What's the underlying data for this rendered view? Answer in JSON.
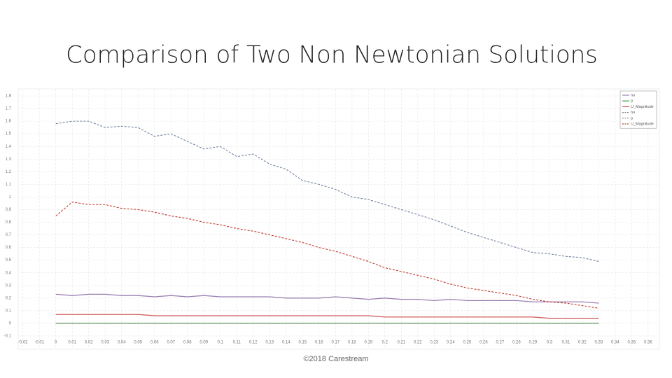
{
  "chart_data": {
    "type": "line",
    "title": "Comparison of Two Non Newtonian Solutions",
    "footer": "©2018 Carestream",
    "x": [
      0,
      0.01,
      0.02,
      0.03,
      0.04,
      0.05,
      0.06,
      0.07,
      0.08,
      0.09,
      0.1,
      0.11,
      0.12,
      0.13,
      0.14,
      0.15,
      0.16,
      0.17,
      0.18,
      0.19,
      0.2,
      0.21,
      0.22,
      0.23,
      0.24,
      0.25,
      0.26,
      0.27,
      0.28,
      0.29,
      0.3,
      0.31,
      0.32,
      0.33
    ],
    "series": [
      {
        "name": "nu",
        "color": "#9b7fb3",
        "dashed": false,
        "values": [
          0.23,
          0.22,
          0.23,
          0.23,
          0.22,
          0.22,
          0.21,
          0.22,
          0.21,
          0.22,
          0.21,
          0.21,
          0.21,
          0.21,
          0.2,
          0.2,
          0.2,
          0.21,
          0.2,
          0.19,
          0.2,
          0.19,
          0.19,
          0.18,
          0.19,
          0.18,
          0.18,
          0.18,
          0.18,
          0.17,
          0.17,
          0.17,
          0.17,
          0.16
        ]
      },
      {
        "name": "p",
        "color": "#3a9a3a",
        "dashed": false,
        "values": [
          0,
          0,
          0,
          0,
          0,
          0,
          0,
          0,
          0,
          0,
          0,
          0,
          0,
          0,
          0,
          0,
          0,
          0,
          0,
          0,
          0,
          0,
          0,
          0,
          0,
          0,
          0,
          0,
          0,
          0,
          0,
          0,
          0,
          0
        ]
      },
      {
        "name": "U_Magnitude",
        "color": "#d06060",
        "dashed": false,
        "values": [
          0.07,
          0.07,
          0.07,
          0.07,
          0.07,
          0.07,
          0.06,
          0.06,
          0.06,
          0.06,
          0.06,
          0.06,
          0.06,
          0.06,
          0.06,
          0.06,
          0.06,
          0.06,
          0.06,
          0.06,
          0.05,
          0.05,
          0.05,
          0.05,
          0.05,
          0.05,
          0.05,
          0.05,
          0.05,
          0.05,
          0.04,
          0.04,
          0.04,
          0.04
        ]
      },
      {
        "name": "nu",
        "color": "#7080a0",
        "dashed": true,
        "values": [
          1.58,
          1.6,
          1.6,
          1.55,
          1.56,
          1.55,
          1.48,
          1.5,
          1.44,
          1.38,
          1.4,
          1.32,
          1.34,
          1.26,
          1.22,
          1.13,
          1.1,
          1.06,
          1.0,
          0.98,
          0.94,
          0.9,
          0.86,
          0.82,
          0.77,
          0.72,
          0.68,
          0.64,
          0.6,
          0.56,
          0.55,
          0.53,
          0.52,
          0.49
        ]
      },
      {
        "name": "p",
        "color": "#909090",
        "dashed": true,
        "values": [
          0,
          0,
          0,
          0,
          0,
          0,
          0,
          0,
          0,
          0,
          0,
          0,
          0,
          0,
          0,
          0,
          0,
          0,
          0,
          0,
          0,
          0,
          0,
          0,
          0,
          0,
          0,
          0,
          0,
          0,
          0,
          0,
          0,
          0
        ]
      },
      {
        "name": "U_Magnitude",
        "color": "#c0392b",
        "dashed": true,
        "values": [
          0.85,
          0.96,
          0.94,
          0.94,
          0.91,
          0.9,
          0.88,
          0.85,
          0.83,
          0.8,
          0.78,
          0.75,
          0.73,
          0.7,
          0.67,
          0.64,
          0.6,
          0.57,
          0.53,
          0.49,
          0.44,
          0.41,
          0.38,
          0.35,
          0.31,
          0.28,
          0.26,
          0.24,
          0.22,
          0.19,
          0.17,
          0.16,
          0.14,
          0.12
        ]
      }
    ],
    "xlim": [
      -0.022,
      0.366
    ],
    "ylim": [
      -0.2,
      1.85
    ],
    "xticks": [
      -0.02,
      -0.01,
      0,
      0.01,
      0.02,
      0.03,
      0.04,
      0.05,
      0.06,
      0.07,
      0.08,
      0.09,
      0.1,
      0.11,
      0.12,
      0.13,
      0.14,
      0.15,
      0.16,
      0.17,
      0.18,
      0.19,
      0.2,
      0.21,
      0.22,
      0.23,
      0.24,
      0.25,
      0.26,
      0.27,
      0.28,
      0.29,
      0.3,
      0.31,
      0.32,
      0.33,
      0.34,
      0.35,
      0.36
    ],
    "yticks": [
      -0.1,
      0,
      0.1,
      0.2,
      0.3,
      0.4,
      0.5,
      0.6,
      0.7,
      0.8,
      0.9,
      1,
      1.1,
      1.2,
      1.3,
      1.4,
      1.5,
      1.6,
      1.7,
      1.8
    ],
    "grid": true,
    "legend": "top-right"
  }
}
